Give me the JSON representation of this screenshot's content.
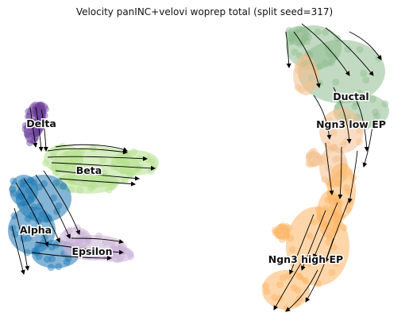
{
  "title": "Velocity panINC+velovi woprep total (split seed=317)",
  "clusters": [
    {
      "name": "Delta",
      "color": "#6a3d9a"
    },
    {
      "name": "Beta",
      "color": "#b2df8a"
    },
    {
      "name": "Alpha",
      "color": "#1f78b4"
    },
    {
      "name": "Epsilon",
      "color": "#cab2d6"
    },
    {
      "name": "Ductal",
      "color": "#8fbc8f"
    },
    {
      "name": "Ngn3 low EP",
      "color": "#f4c08f"
    },
    {
      "name": "Ngn3 high EP",
      "color": "#fdb462"
    }
  ]
}
